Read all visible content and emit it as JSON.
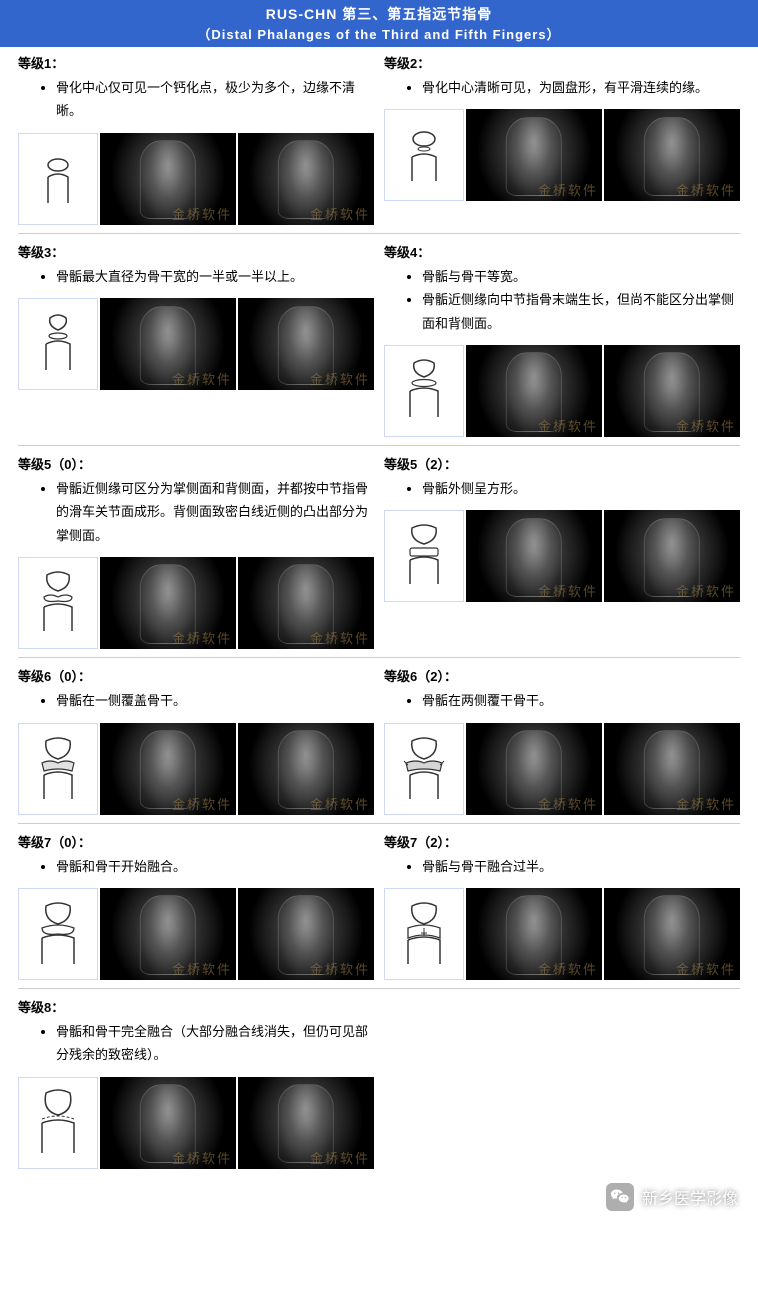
{
  "header": {
    "title_cn": "RUS-CHN 第三、第五指远节指骨",
    "title_en": "（Distal Phalanges of the Third and Fifth Fingers）"
  },
  "watermark_img": "金桥软件",
  "footer_watermark": "新乡医学影像",
  "rows": [
    {
      "left": {
        "title": "等级1：",
        "bullets": [
          "骨化中心仅可见一个钙化点，极少为多个，边缘不清晰。"
        ]
      },
      "right": {
        "title": "等级2：",
        "bullets": [
          "骨化中心清晰可见，为圆盘形，有平滑连续的缘。"
        ]
      }
    },
    {
      "left": {
        "title": "等级3：",
        "bullets": [
          "骨骺最大直径为骨干宽的一半或一半以上。"
        ]
      },
      "right": {
        "title": "等级4：",
        "bullets": [
          "骨骺与骨干等宽。",
          "骨骺近侧缘向中节指骨末端生长，但尚不能区分出掌侧面和背侧面。"
        ]
      }
    },
    {
      "left": {
        "title": "等级5（0）：",
        "bullets": [
          "骨骺近侧缘可区分为掌侧面和背侧面，并都按中节指骨的滑车关节面成形。背侧面致密白线近侧的凸出部分为掌侧面。"
        ]
      },
      "right": {
        "title": "等级5（2）：",
        "bullets": [
          "骨骺外侧呈方形。"
        ]
      }
    },
    {
      "left": {
        "title": "等级6（0）：",
        "bullets": [
          "骨骺在一侧覆盖骨干。"
        ]
      },
      "right": {
        "title": "等级6（2）：",
        "bullets": [
          "骨骺在两侧覆干骨干。"
        ]
      }
    },
    {
      "left": {
        "title": "等级7（0）：",
        "bullets": [
          "骨骺和骨干开始融合。"
        ]
      },
      "right": {
        "title": "等级7（2）：",
        "bullets": [
          "骨骺与骨干融合过半。"
        ]
      }
    },
    {
      "left": {
        "title": "等级8：",
        "bullets": [
          "骨骺和骨干完全融合（大部分融合线消失，但仍可见部分残余的致密线）。"
        ]
      },
      "right": null
    }
  ]
}
